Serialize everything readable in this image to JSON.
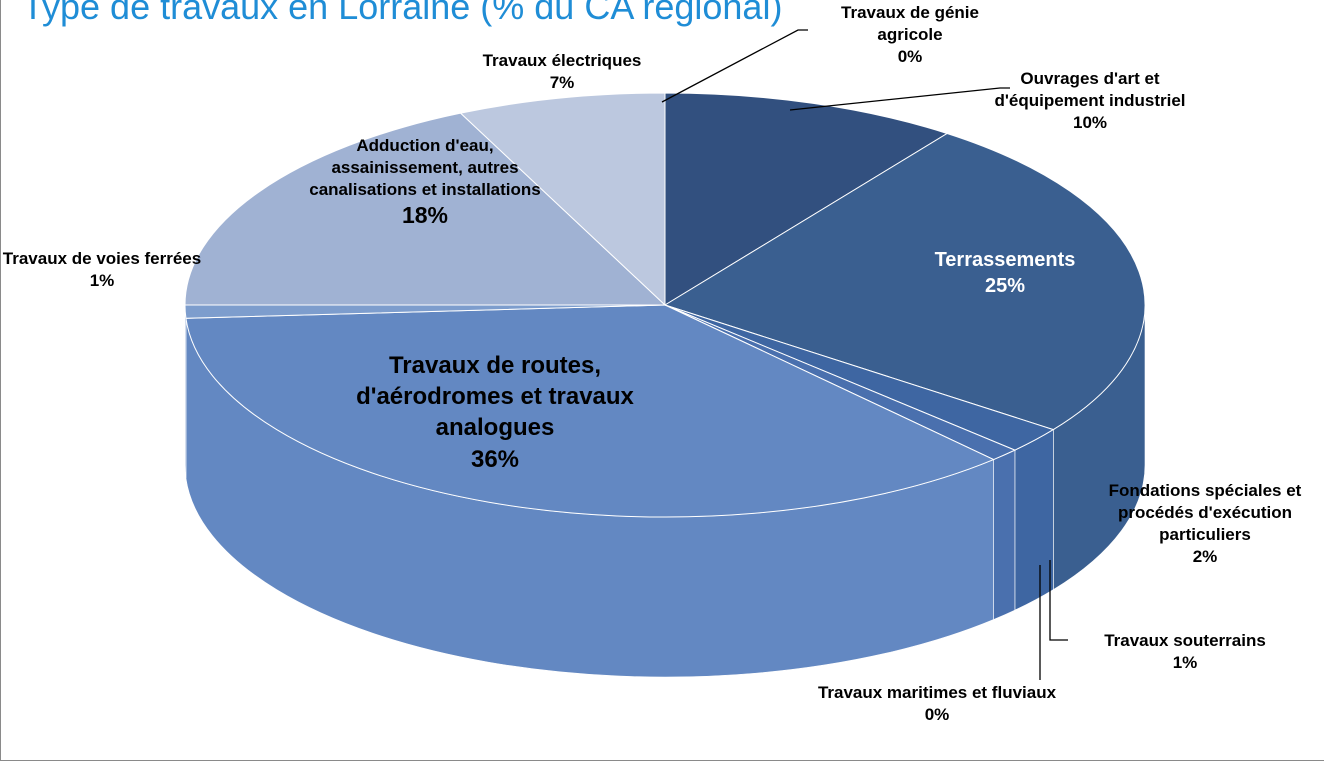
{
  "chart_data": {
    "type": "pie",
    "title": "Type de travaux en Lorraine (% du CA régional)",
    "categories": [
      "Travaux de génie agricole",
      "Ouvrages d'art et d'équipement industriel",
      "Terrassements",
      "Fondations spéciales et procédés d'exécution particuliers",
      "Travaux souterrains",
      "Travaux maritimes et fluviaux",
      "Travaux de routes, d'aérodromes et travaux analogues",
      "Travaux de voies ferrées",
      "Adduction d'eau, assainissement, autres canalisations et installations",
      "Travaux électriques"
    ],
    "values": [
      0,
      10,
      25,
      2,
      1,
      0,
      36,
      1,
      18,
      7
    ],
    "value_labels": [
      "0%",
      "10%",
      "25%",
      "2%",
      "1%",
      "0%",
      "36%",
      "1%",
      "18%",
      "7%"
    ],
    "colors": [
      "#2c4a78",
      "#32507f",
      "#3a5f90",
      "#3e66a2",
      "#4a70ae",
      "#5579b6",
      "#6388c2",
      "#7d9dcd",
      "#a0b2d3",
      "#bcc8df"
    ]
  }
}
